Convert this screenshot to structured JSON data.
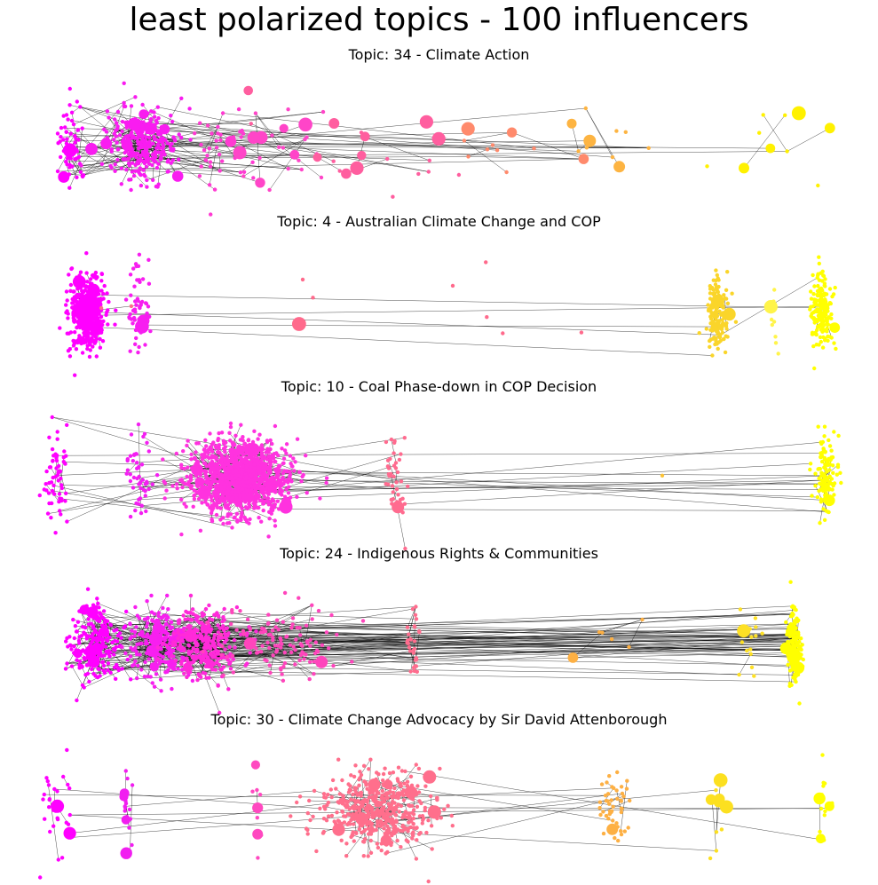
{
  "title": "least polarized topics - 100 influencers",
  "chart_data": [
    {
      "type": "network",
      "title": "Topic: 34 - Climate Action",
      "edges": "dense",
      "clusters": [
        {
          "x": 0.03,
          "spread": 0.01,
          "color": "#ff00ff",
          "count": 60
        },
        {
          "x": 0.12,
          "spread": 0.025,
          "color": "#f91cf0",
          "count": 300
        },
        {
          "x": 0.22,
          "spread": 0.03,
          "color": "#ff3ad2",
          "count": 40
        },
        {
          "x": 0.3,
          "spread": 0.04,
          "color": "#ff45c8",
          "count": 25
        },
        {
          "x": 0.42,
          "spread": 0.08,
          "color": "#ff5e9f",
          "count": 20
        },
        {
          "x": 0.58,
          "spread": 0.05,
          "color": "#ff8a6c",
          "count": 10
        },
        {
          "x": 0.73,
          "spread": 0.04,
          "color": "#fdb442",
          "count": 10
        },
        {
          "x": 0.95,
          "spread": 0.04,
          "color": "#fff100",
          "count": 10
        }
      ]
    },
    {
      "type": "network",
      "title": "Topic: 4 - Australian Climate Change and COP",
      "edges": "sparse",
      "clusters": [
        {
          "x": 0.05,
          "spread": 0.012,
          "color": "#ff00ff",
          "count": 500
        },
        {
          "x": 0.115,
          "spread": 0.008,
          "color": "#f71ef0",
          "count": 60
        },
        {
          "x": 0.35,
          "spread": 0.2,
          "color": "#ff6a8c",
          "count": 10
        },
        {
          "x": 0.86,
          "spread": 0.008,
          "color": "#fad52a",
          "count": 150
        },
        {
          "x": 0.93,
          "spread": 0.004,
          "color": "#fff44a",
          "count": 10
        },
        {
          "x": 0.995,
          "spread": 0.008,
          "color": "#ffff00",
          "count": 180
        }
      ]
    },
    {
      "type": "network",
      "title": "Topic: 10 - Coal Phase-down in COP Decision",
      "edges": "medium",
      "clusters": [
        {
          "x": 0.01,
          "spread": 0.008,
          "color": "#ff00ff",
          "count": 60
        },
        {
          "x": 0.115,
          "spread": 0.01,
          "color": "#f41ff2",
          "count": 50
        },
        {
          "x": 0.245,
          "spread": 0.035,
          "color": "#ff32df",
          "count": 1200
        },
        {
          "x": 0.445,
          "spread": 0.008,
          "color": "#ff6b8f",
          "count": 40
        },
        {
          "x": 0.79,
          "spread": 0.001,
          "color": "#fcc336",
          "count": 1
        },
        {
          "x": 1.0,
          "spread": 0.008,
          "color": "#ffff00",
          "count": 130
        }
      ]
    },
    {
      "type": "network",
      "title": "Topic: 24 - Indigenous Rights & Communities",
      "edges": "dense",
      "clusters": [
        {
          "x": 0.06,
          "spread": 0.02,
          "color": "#ff00ff",
          "count": 200
        },
        {
          "x": 0.14,
          "spread": 0.02,
          "color": "#f81ff0",
          "count": 200
        },
        {
          "x": 0.2,
          "spread": 0.025,
          "color": "#ff2ad9",
          "count": 300
        },
        {
          "x": 0.3,
          "spread": 0.04,
          "color": "#ff45bc",
          "count": 120
        },
        {
          "x": 0.47,
          "spread": 0.005,
          "color": "#ff6d8e",
          "count": 30
        },
        {
          "x": 0.72,
          "spread": 0.06,
          "color": "#fdb044",
          "count": 6
        },
        {
          "x": 0.9,
          "spread": 0.01,
          "color": "#fde026",
          "count": 15
        },
        {
          "x": 0.96,
          "spread": 0.005,
          "color": "#ffff00",
          "count": 150
        }
      ]
    },
    {
      "type": "network",
      "title": "Topic: 30 - Climate Change Advocacy by Sir David Attenborough",
      "edges": "medium",
      "clusters": [
        {
          "x": 0.01,
          "spread": 0.01,
          "color": "#ff00ff",
          "count": 35
        },
        {
          "x": 0.1,
          "spread": 0.004,
          "color": "#f11ef0",
          "count": 20
        },
        {
          "x": 0.27,
          "spread": 0.005,
          "color": "#ff48c0",
          "count": 10
        },
        {
          "x": 0.42,
          "spread": 0.04,
          "color": "#ff6f8c",
          "count": 500
        },
        {
          "x": 0.73,
          "spread": 0.01,
          "color": "#fdb044",
          "count": 50
        },
        {
          "x": 0.86,
          "spread": 0.008,
          "color": "#fce020",
          "count": 12
        },
        {
          "x": 1.0,
          "spread": 0.005,
          "color": "#ffff00",
          "count": 15
        }
      ]
    }
  ]
}
